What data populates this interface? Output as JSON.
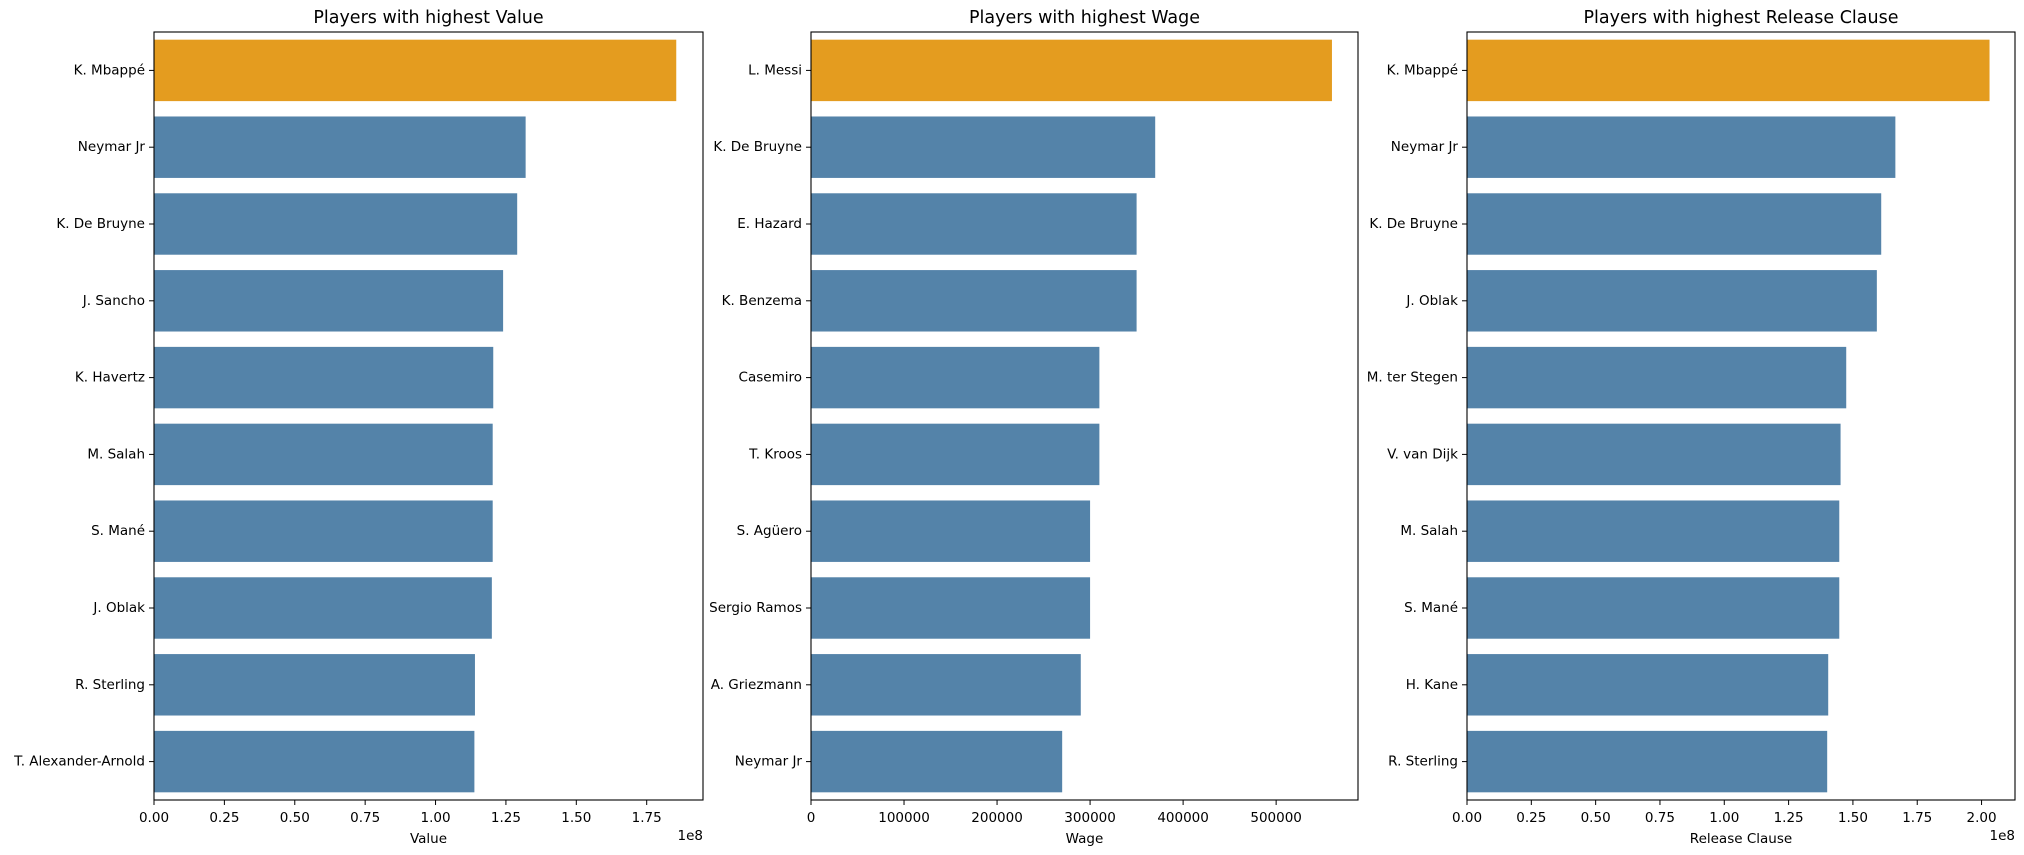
{
  "colors": {
    "highlight": "#E49C1F",
    "bar": "#5483A9"
  },
  "chart_data": [
    {
      "type": "bar",
      "orientation": "horizontal",
      "title": "Players with highest Value",
      "xlabel": "Value",
      "ylabel": "",
      "xlim": [
        0,
        195000000
      ],
      "xticks": [
        0,
        25000000,
        50000000,
        75000000,
        100000000,
        125000000,
        150000000,
        175000000
      ],
      "xtick_labels": [
        "0.00",
        "0.25",
        "0.50",
        "0.75",
        "1.00",
        "1.25",
        "1.50",
        "1.75"
      ],
      "x_offset_label": "1e8",
      "categories": [
        "K. Mbappé",
        "Neymar Jr",
        "K. De Bruyne",
        "J. Sancho",
        "K. Havertz",
        "M. Salah",
        "S. Mané",
        "J. Oblak",
        "R. Sterling",
        "T. Alexander-Arnold"
      ],
      "values": [
        185500000,
        132000000,
        129000000,
        124000000,
        120500000,
        120300000,
        120300000,
        120000000,
        114000000,
        113800000
      ],
      "highlight_index": 0
    },
    {
      "type": "bar",
      "orientation": "horizontal",
      "title": "Players with highest Wage",
      "xlabel": "Wage",
      "ylabel": "",
      "xlim": [
        0,
        588000
      ],
      "xticks": [
        0,
        100000,
        200000,
        300000,
        400000,
        500000
      ],
      "xtick_labels": [
        "0",
        "100000",
        "200000",
        "300000",
        "400000",
        "500000"
      ],
      "x_offset_label": "",
      "categories": [
        "L. Messi",
        "K. De Bruyne",
        "E. Hazard",
        "K. Benzema",
        "Casemiro",
        "T. Kroos",
        "S. Agüero",
        "Sergio Ramos",
        "A. Griezmann",
        "Neymar Jr"
      ],
      "values": [
        560000,
        370000,
        350000,
        350000,
        310000,
        310000,
        300000,
        300000,
        290000,
        270000
      ],
      "highlight_index": 0
    },
    {
      "type": "bar",
      "orientation": "horizontal",
      "title": "Players with highest Release Clause",
      "xlabel": "Release Clause",
      "ylabel": "",
      "xlim": [
        0,
        213000000
      ],
      "xticks": [
        0,
        25000000,
        50000000,
        75000000,
        100000000,
        125000000,
        150000000,
        175000000,
        200000000
      ],
      "xtick_labels": [
        "0.00",
        "0.25",
        "0.50",
        "0.75",
        "1.00",
        "1.25",
        "1.50",
        "1.75",
        "2.00"
      ],
      "x_offset_label": "1e8",
      "categories": [
        "K. Mbappé",
        "Neymar Jr",
        "K. De Bruyne",
        "J. Oblak",
        "M. ter Stegen",
        "V. van Dijk",
        "M. Salah",
        "S. Mané",
        "H. Kane",
        "R. Sterling"
      ],
      "values": [
        203100000,
        166500000,
        161000000,
        159300000,
        147400000,
        145200000,
        144700000,
        144700000,
        140400000,
        140000000
      ],
      "highlight_index": 0
    }
  ]
}
